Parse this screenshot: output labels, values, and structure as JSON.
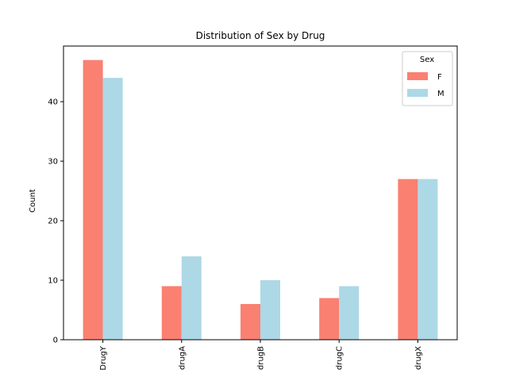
{
  "chart_data": {
    "type": "bar",
    "title": "Distribution of Sex by Drug",
    "xlabel": "",
    "ylabel": "Count",
    "categories": [
      "DrugY",
      "drugA",
      "drugB",
      "drugC",
      "drugX"
    ],
    "series": [
      {
        "name": "F",
        "values": [
          47,
          9,
          6,
          7,
          27
        ],
        "color": "#fa8072"
      },
      {
        "name": "M",
        "values": [
          44,
          14,
          10,
          9,
          27
        ],
        "color": "#add8e6"
      }
    ],
    "ylim": [
      0,
      49.35
    ],
    "yticks": [
      0,
      10,
      20,
      30,
      40
    ],
    "legend": {
      "title": "Sex",
      "placement": "top-right"
    },
    "grid": false
  }
}
